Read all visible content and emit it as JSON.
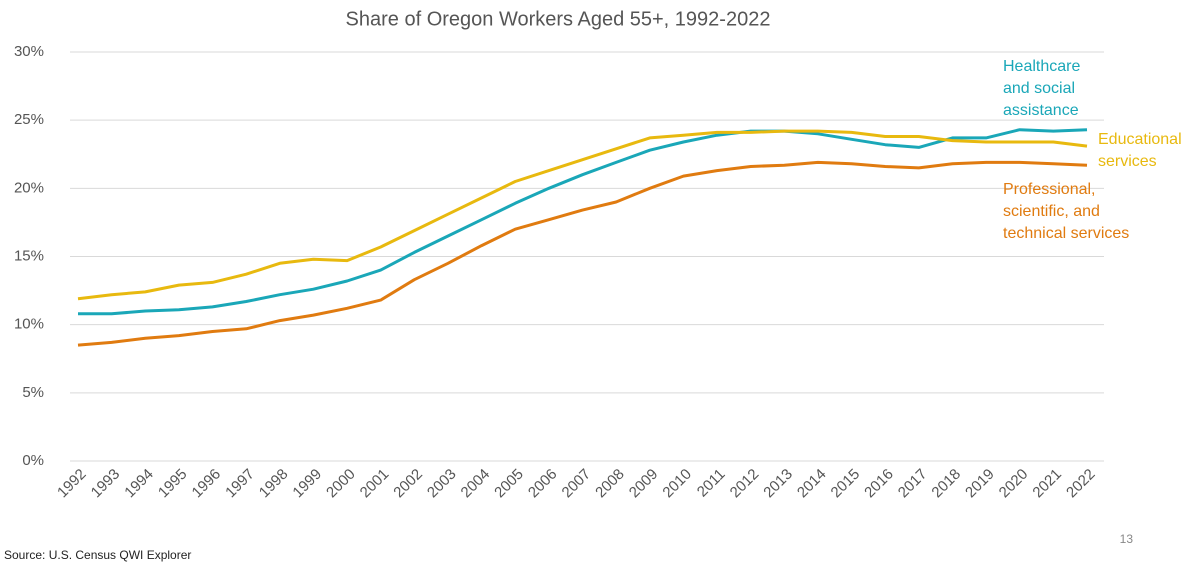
{
  "chart_data": {
    "type": "line",
    "title": "Share of Oregon Workers Aged 55+, 1992-2022",
    "categories": [
      "1992",
      "1993",
      "1994",
      "1995",
      "1996",
      "1997",
      "1998",
      "1999",
      "2000",
      "2001",
      "2002",
      "2003",
      "2004",
      "2005",
      "2006",
      "2007",
      "2008",
      "2009",
      "2010",
      "2011",
      "2012",
      "2013",
      "2014",
      "2015",
      "2016",
      "2017",
      "2018",
      "2019",
      "2020",
      "2021",
      "2022"
    ],
    "series": [
      {
        "name": "Healthcare and social assistance",
        "color": "#1aa7b8",
        "values": [
          10.8,
          10.8,
          11.0,
          11.1,
          11.3,
          11.7,
          12.2,
          12.6,
          13.2,
          14.0,
          15.3,
          16.5,
          17.7,
          18.9,
          20.0,
          21.0,
          21.9,
          22.8,
          23.4,
          23.9,
          24.2,
          24.2,
          24.0,
          23.6,
          23.2,
          23.0,
          23.7,
          23.7,
          24.3,
          24.2,
          24.3
        ]
      },
      {
        "name": "Educational services",
        "color": "#e8b90f",
        "values": [
          11.9,
          12.2,
          12.4,
          12.9,
          13.1,
          13.7,
          14.5,
          14.8,
          14.7,
          15.7,
          16.9,
          18.1,
          19.3,
          20.5,
          21.3,
          22.1,
          22.9,
          23.7,
          23.9,
          24.1,
          24.1,
          24.2,
          24.2,
          24.1,
          23.8,
          23.8,
          23.5,
          23.4,
          23.4,
          23.4,
          23.1
        ]
      },
      {
        "name": "Professional, scientific, and technical services",
        "color": "#e07b10",
        "values": [
          8.5,
          8.7,
          9.0,
          9.2,
          9.5,
          9.7,
          10.3,
          10.7,
          11.2,
          11.8,
          13.3,
          14.5,
          15.8,
          17.0,
          17.7,
          18.4,
          19.0,
          20.0,
          20.9,
          21.3,
          21.6,
          21.7,
          21.9,
          21.8,
          21.6,
          21.5,
          21.8,
          21.9,
          21.9,
          21.8,
          21.7
        ]
      }
    ],
    "ylim": [
      0,
      30
    ],
    "yticks": [
      {
        "value": 0,
        "label": "0%"
      },
      {
        "value": 5,
        "label": "5%"
      },
      {
        "value": 10,
        "label": "10%"
      },
      {
        "value": 15,
        "label": "15%"
      },
      {
        "value": 20,
        "label": "20%"
      },
      {
        "value": 25,
        "label": "25%"
      },
      {
        "value": 30,
        "label": "30%"
      }
    ],
    "grid": true
  },
  "source": "Source: U.S. Census QWI Explorer",
  "page_number": "13"
}
